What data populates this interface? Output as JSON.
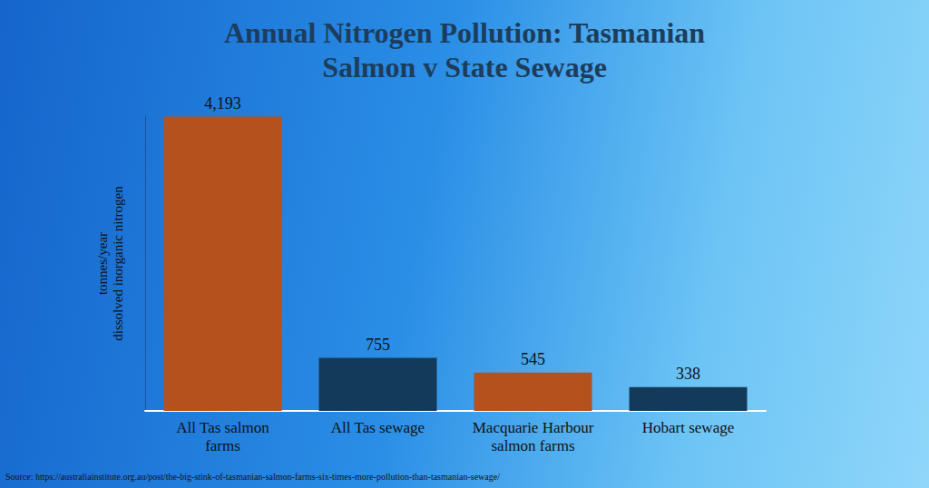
{
  "chart_data": {
    "type": "bar",
    "title": "Annual Nitrogen Pollution: Tasmanian\nSalmon v State Sewage",
    "y_label": "tonnes/year\ndissolved inorganic nitrogen",
    "categories": [
      "All Tas salmon\nfarms",
      "All Tas sewage",
      "Macquarie Harbour\nsalmon farms",
      "Hobart sewage"
    ],
    "values": [
      4193,
      755,
      545,
      338
    ],
    "value_labels": [
      "4,193",
      "755",
      "545",
      "338"
    ],
    "colors": [
      "#b4511c",
      "#143a5a",
      "#b4511c",
      "#143a5a"
    ],
    "ylim": [
      0,
      4200
    ],
    "yticks": [],
    "grid": false,
    "data_labels": true,
    "tick_labels": "x",
    "source": "Source: https://australiainstitute.org.au/post/the-big-stink-of-tasmanian-salmon-farms-six-times-more-pollution-than-tasmanian-sewage/"
  }
}
